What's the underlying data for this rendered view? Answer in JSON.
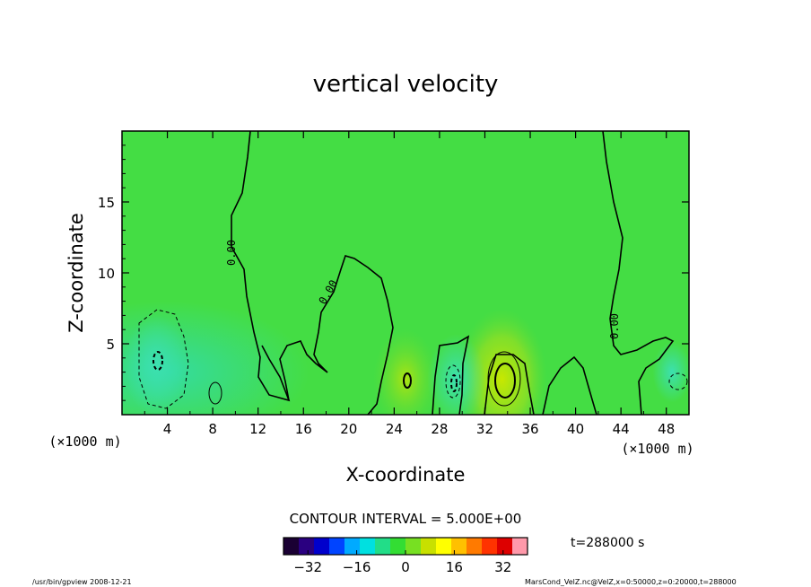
{
  "chart_data": {
    "type": "heatmap",
    "title": "vertical velocity",
    "xlabel": "X-coordinate",
    "ylabel": "Z-coordinate",
    "x_unit": "(×1000 m)",
    "z_unit": "(×1000 m)",
    "xlim": [
      0,
      50
    ],
    "ylim": [
      0,
      20
    ],
    "x_ticks": [
      4,
      8,
      12,
      16,
      20,
      24,
      28,
      32,
      36,
      40,
      44,
      48
    ],
    "y_ticks": [
      5,
      10,
      15
    ],
    "contour_interval_text": "CONTOUR INTERVAL = 5.000E+00",
    "zero_contour_label": "0.00",
    "colorbar": {
      "ticks": [
        -32,
        -16,
        0,
        16,
        32
      ],
      "range": [
        -40,
        40
      ],
      "colors": [
        "#1a0033",
        "#2a0080",
        "#0000cc",
        "#0044ff",
        "#00aaff",
        "#00e0e0",
        "#22dd88",
        "#33dd33",
        "#77e022",
        "#c8e000",
        "#ffff00",
        "#ffc000",
        "#ff7a00",
        "#ff3300",
        "#dd0000",
        "#ff99aa"
      ]
    },
    "time_label": "t=288000 s",
    "features": [
      {
        "label": "updraft",
        "x": 33.5,
        "z": 2.5,
        "w": 10
      },
      {
        "label": "updraft",
        "x": 25,
        "z": 2.5,
        "w": 6
      },
      {
        "label": "downdraft",
        "x": 3,
        "z": 3.5,
        "w": -6
      },
      {
        "label": "downdraft",
        "x": 29.5,
        "z": 2.5,
        "w": -5
      },
      {
        "label": "downdraft",
        "x": 48.5,
        "z": 3,
        "w": -2
      }
    ]
  },
  "footer": {
    "left": "/usr/bin/gpview   2008-12-21",
    "right": "MarsCond_VelZ.nc@VelZ,x=0:50000,z=0:20000,t=288000"
  }
}
